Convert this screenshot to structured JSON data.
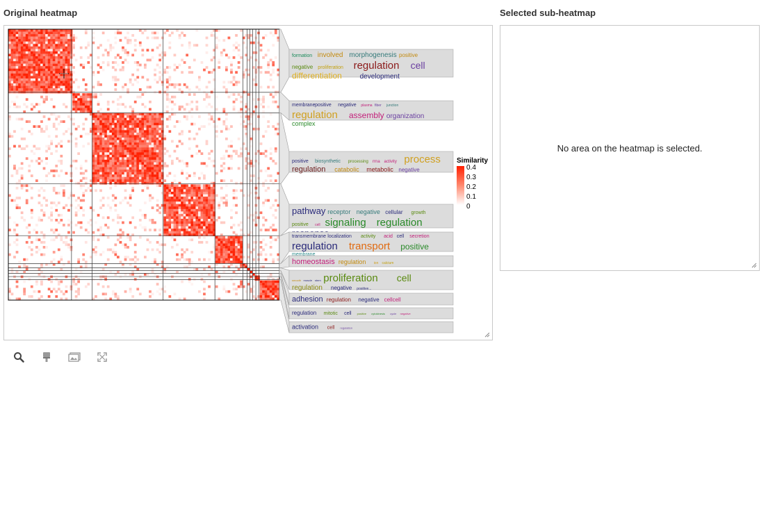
{
  "panels": {
    "original_title": "Original heatmap",
    "selected_title": "Selected sub-heatmap",
    "empty_message": "No area on the heatmap is selected."
  },
  "toolbar": [
    {
      "name": "search-tool-button",
      "icon": "magnifier-icon"
    },
    {
      "name": "brush-tool-button",
      "icon": "brush-icon"
    },
    {
      "name": "image-tool-button",
      "icon": "image-icon"
    },
    {
      "name": "fullscreen-tool-button",
      "icon": "expand-icon"
    }
  ],
  "colors": {
    "heat_high": "#ff1f00",
    "heat_low": "#ffffff",
    "word_panel_bg": "#dcdcdc"
  },
  "legend": {
    "title": "Similarity",
    "ticks": [
      "0.4",
      "0.3",
      "0.2",
      "0.1",
      "0"
    ],
    "max": 0.4,
    "min": 0
  },
  "chart_data": {
    "type": "heatmap",
    "title": "",
    "clusters": [
      {
        "id": 1,
        "size": 0.233
      },
      {
        "id": 2,
        "size": 0.076
      },
      {
        "id": 3,
        "size": 0.262
      },
      {
        "id": 4,
        "size": 0.191
      },
      {
        "id": 5,
        "size": 0.103
      },
      {
        "id": 6,
        "size": 0.016
      },
      {
        "id": 7,
        "size": 0.01
      },
      {
        "id": 8,
        "size": 0.01
      },
      {
        "id": 9,
        "size": 0.012
      },
      {
        "id": 10,
        "size": 0.011
      },
      {
        "id": 11,
        "size": 0.076
      }
    ],
    "word_clouds": [
      {
        "words": [
          {
            "text": "formation",
            "color": "#1a8a5a",
            "size": 7
          },
          {
            "text": "involved",
            "color": "#c28a10",
            "size": 10
          },
          {
            "text": "morphogenesis",
            "color": "#357a7a",
            "size": 10
          },
          {
            "text": "positive",
            "color": "#c28a10",
            "size": 8
          },
          {
            "text": "negative",
            "color": "#5a8a10",
            "size": 8
          },
          {
            "text": "proliferation",
            "color": "#c2a010",
            "size": 7
          },
          {
            "text": "regulation",
            "color": "#8b1a1a",
            "size": 15
          },
          {
            "text": "cell",
            "color": "#6a3fa0",
            "size": 14
          },
          {
            "text": "differentiation",
            "color": "#e0b020",
            "size": 12
          },
          {
            "text": "development",
            "color": "#2a2a7a",
            "size": 10
          }
        ]
      },
      {
        "words": [
          {
            "text": "membrane",
            "color": "#2a2a7a",
            "size": 7
          },
          {
            "text": "positive",
            "color": "#2a2a7a",
            "size": 7
          },
          {
            "text": "negative",
            "color": "#2a2a7a",
            "size": 7
          },
          {
            "text": "plasma",
            "color": "#c2207a",
            "size": 5
          },
          {
            "text": "fiber",
            "color": "#6a3fa0",
            "size": 5
          },
          {
            "text": "junction",
            "color": "#357a7a",
            "size": 5
          },
          {
            "text": "regulation",
            "color": "#d0a020",
            "size": 15
          },
          {
            "text": "assembly",
            "color": "#c2207a",
            "size": 12
          },
          {
            "text": "organization",
            "color": "#6a3fa0",
            "size": 10
          },
          {
            "text": "complex",
            "color": "#2a8a2a",
            "size": 9
          }
        ]
      },
      {
        "words": [
          {
            "text": "positive",
            "color": "#2a2a7a",
            "size": 7
          },
          {
            "text": "biosynthetic",
            "color": "#357a7a",
            "size": 7
          },
          {
            "text": "processing",
            "color": "#5a8a10",
            "size": 6
          },
          {
            "text": "rrna",
            "color": "#c2207a",
            "size": 6
          },
          {
            "text": "activity",
            "color": "#c2207a",
            "size": 6
          },
          {
            "text": "process",
            "color": "#d0a020",
            "size": 15
          },
          {
            "text": "regulation",
            "color": "#6a1a1a",
            "size": 11
          },
          {
            "text": "catabolic",
            "color": "#c28a10",
            "size": 9
          },
          {
            "text": "metabolic",
            "color": "#8b1a1a",
            "size": 9
          },
          {
            "text": "negative",
            "color": "#6a3fa0",
            "size": 8
          }
        ]
      },
      {
        "words": [
          {
            "text": "pathway",
            "color": "#2a2a7a",
            "size": 13
          },
          {
            "text": "receptor",
            "color": "#357a7a",
            "size": 9
          },
          {
            "text": "negative",
            "color": "#357a7a",
            "size": 9
          },
          {
            "text": "cellular",
            "color": "#2a2a7a",
            "size": 8
          },
          {
            "text": "growth",
            "color": "#5a8a10",
            "size": 7
          },
          {
            "text": "positive",
            "color": "#5a8a10",
            "size": 7
          },
          {
            "text": "cell",
            "color": "#c2207a",
            "size": 5
          },
          {
            "text": "signaling",
            "color": "#2a8a2a",
            "size": 15
          },
          {
            "text": "regulation",
            "color": "#2a8a2a",
            "size": 15
          },
          {
            "text": "response",
            "color": "#2a2a7a",
            "size": 13
          }
        ]
      },
      {
        "words": [
          {
            "text": "transmembrane",
            "color": "#2a2a7a",
            "size": 7
          },
          {
            "text": "localization",
            "color": "#2a2a7a",
            "size": 7
          },
          {
            "text": "activity",
            "color": "#5a8a10",
            "size": 7
          },
          {
            "text": "acid",
            "color": "#c2207a",
            "size": 7
          },
          {
            "text": "cell",
            "color": "#2a2a7a",
            "size": 7
          },
          {
            "text": "secretion",
            "color": "#c2207a",
            "size": 7
          },
          {
            "text": "regulation",
            "color": "#2a2a7a",
            "size": 15
          },
          {
            "text": "transport",
            "color": "#e06a10",
            "size": 15
          },
          {
            "text": "positive",
            "color": "#2a8a2a",
            "size": 12
          },
          {
            "text": "membrane",
            "color": "#2a8a8a",
            "size": 7
          }
        ]
      },
      {
        "words": [
          {
            "text": "homeostasis",
            "color": "#c2207a",
            "size": 11
          },
          {
            "text": "regulation",
            "color": "#c28a10",
            "size": 9
          },
          {
            "text": "ion",
            "color": "#d0a020",
            "size": 5
          },
          {
            "text": "calcium",
            "color": "#c2a010",
            "size": 5
          }
        ]
      },
      {
        "words": [
          {
            "text": "smooth",
            "color": "#c28a10",
            "size": 4
          },
          {
            "text": "muscle",
            "color": "#2a2a7a",
            "size": 4
          },
          {
            "text": "stem",
            "color": "#2a2a7a",
            "size": 4
          },
          {
            "text": "proliferation",
            "color": "#5a8a10",
            "size": 15
          },
          {
            "text": "cell",
            "color": "#5a8a10",
            "size": 14
          },
          {
            "text": "regulation",
            "color": "#8a8a10",
            "size": 10
          },
          {
            "text": "negative",
            "color": "#2a2a7a",
            "size": 8
          },
          {
            "text": "positive...",
            "color": "#2a2a7a",
            "size": 5
          }
        ]
      },
      {
        "words": [
          {
            "text": "adhesion",
            "color": "#2a2a7a",
            "size": 11
          },
          {
            "text": "regulation",
            "color": "#8b1a1a",
            "size": 8
          },
          {
            "text": "negative",
            "color": "#2a2a7a",
            "size": 8
          },
          {
            "text": "cellcell",
            "color": "#c2207a",
            "size": 8
          }
        ]
      },
      {
        "words": [
          {
            "text": "regulation",
            "color": "#2a2a7a",
            "size": 8
          },
          {
            "text": "mitotic",
            "color": "#5a8a10",
            "size": 7
          },
          {
            "text": "cell",
            "color": "#2a2a7a",
            "size": 7
          },
          {
            "text": "positive",
            "color": "#5a8a10",
            "size": 4
          },
          {
            "text": "cytokinesis",
            "color": "#2a8a2a",
            "size": 4
          },
          {
            "text": "cycle",
            "color": "#6a3fa0",
            "size": 4
          },
          {
            "text": "negative",
            "color": "#c2207a",
            "size": 4
          }
        ]
      },
      {
        "words": [
          {
            "text": "activation",
            "color": "#2a2a7a",
            "size": 9
          },
          {
            "text": "cell",
            "color": "#8b1a1a",
            "size": 7
          },
          {
            "text": "regulation",
            "color": "#6a3fa0",
            "size": 4
          }
        ]
      }
    ]
  }
}
